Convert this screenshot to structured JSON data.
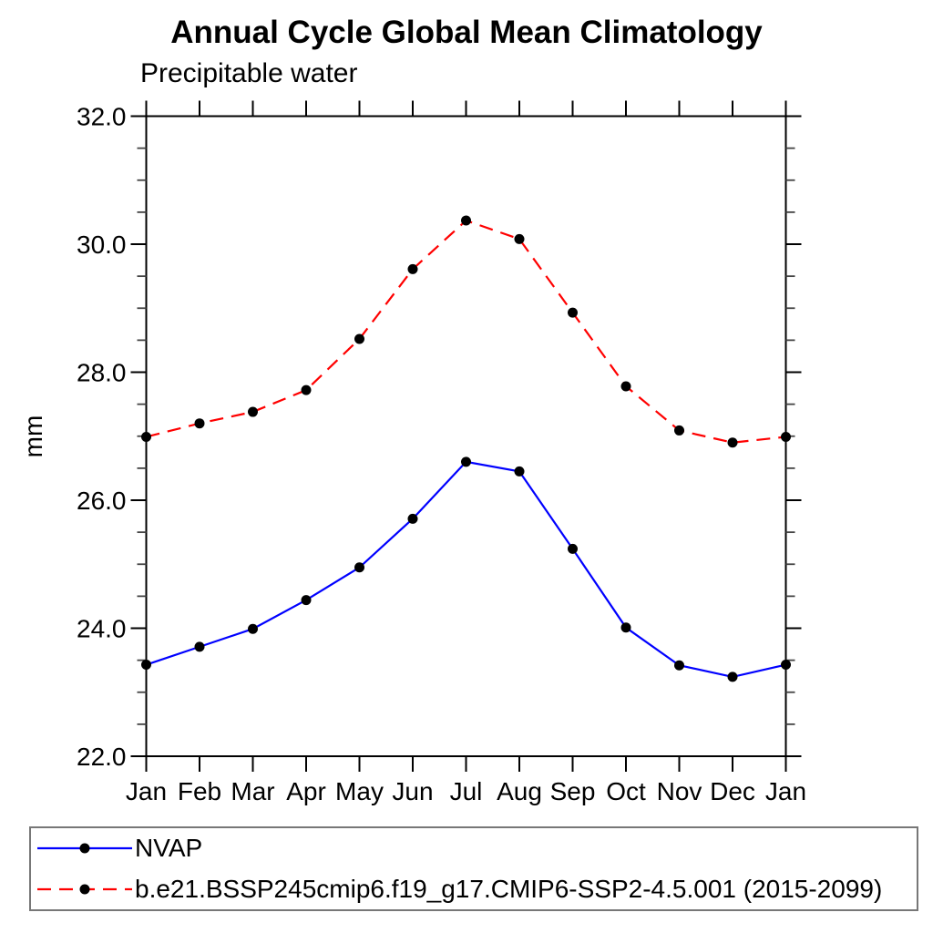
{
  "chart_data": {
    "type": "line",
    "title": "Annual Cycle Global Mean Climatology",
    "subtitle": "Precipitable water",
    "xlabel": "",
    "ylabel": "mm",
    "categories": [
      "Jan",
      "Feb",
      "Mar",
      "Apr",
      "May",
      "Jun",
      "Jul",
      "Aug",
      "Sep",
      "Oct",
      "Nov",
      "Dec",
      "Jan"
    ],
    "ylim": [
      22.0,
      32.0
    ],
    "y_ticks": [
      22.0,
      24.0,
      26.0,
      28.0,
      30.0,
      32.0
    ],
    "y_tick_labels": [
      "22.0",
      "24.0",
      "26.0",
      "28.0",
      "30.0",
      "32.0"
    ],
    "y_minor_step": 0.5,
    "grid": false,
    "legend_position": "bottom",
    "colors": {
      "axis": "#000000",
      "minor_tick": "#444444",
      "marker": "#000000",
      "legend_border": "#777777"
    },
    "series": [
      {
        "id": "nvap",
        "name": "NVAP",
        "color": "#0000ff",
        "line_style": "solid",
        "marker": "filled-circle",
        "values": [
          23.43,
          23.71,
          23.99,
          24.44,
          24.95,
          25.71,
          26.6,
          26.45,
          25.24,
          24.01,
          23.42,
          23.24,
          23.43
        ]
      },
      {
        "id": "cmip6-ssp245",
        "name": "b.e21.BSSP245cmip6.f19_g17.CMIP6-SSP2-4.5.001 (2015-2099)",
        "color": "#ff0000",
        "line_style": "dashed",
        "marker": "filled-circle",
        "values": [
          26.99,
          27.2,
          27.38,
          27.72,
          28.52,
          29.61,
          30.37,
          30.08,
          28.93,
          27.78,
          27.09,
          26.9,
          26.99
        ]
      }
    ]
  }
}
